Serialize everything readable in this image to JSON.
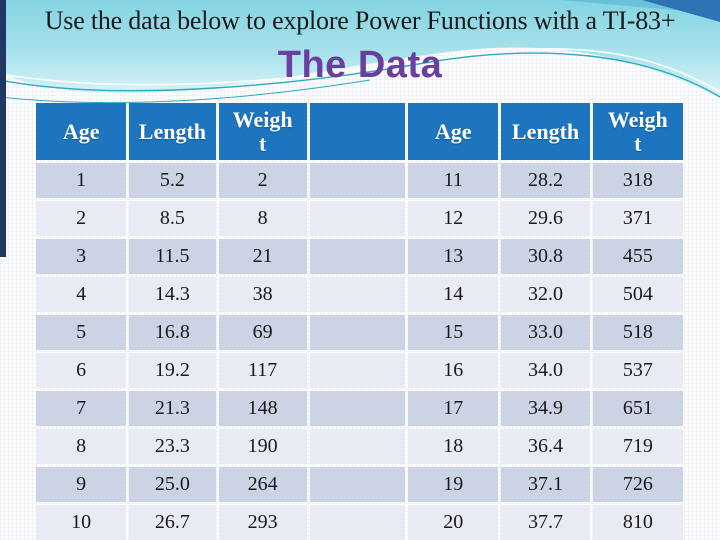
{
  "slide": {
    "title": "Use the data below to explore Power Functions with a TI-83+",
    "subtitle": "The Data"
  },
  "colors": {
    "banner_gradient_top": "#84D4E2",
    "banner_gradient_bottom": "#DCF4F7",
    "banner_line_teal": "#2FA9BE",
    "left_bar_navy": "#1F3864",
    "corner_wedge_blue": "#2E74B5",
    "title_black": "#1A1A1A",
    "subtitle_purple": "#6A3FA0",
    "header_bg_blue": "#1C75BE",
    "header_text": "#FFFFFF",
    "row_dark": "#CCD3E4",
    "row_light": "#E8EBF4",
    "cell_text": "#1A1A1A"
  },
  "table": {
    "column_headers": [
      "Age",
      "Length",
      "Weight"
    ],
    "left_rows": [
      [
        "1",
        "5.2",
        "2"
      ],
      [
        "2",
        "8.5",
        "8"
      ],
      [
        "3",
        "11.5",
        "21"
      ],
      [
        "4",
        "14.3",
        "38"
      ],
      [
        "5",
        "16.8",
        "69"
      ],
      [
        "6",
        "19.2",
        "117"
      ],
      [
        "7",
        "21.3",
        "148"
      ],
      [
        "8",
        "23.3",
        "190"
      ],
      [
        "9",
        "25.0",
        "264"
      ],
      [
        "10",
        "26.7",
        "293"
      ]
    ],
    "right_rows": [
      [
        "11",
        "28.2",
        "318"
      ],
      [
        "12",
        "29.6",
        "371"
      ],
      [
        "13",
        "30.8",
        "455"
      ],
      [
        "14",
        "32.0",
        "504"
      ],
      [
        "15",
        "33.0",
        "518"
      ],
      [
        "16",
        "34.0",
        "537"
      ],
      [
        "17",
        "34.9",
        "651"
      ],
      [
        "18",
        "36.4",
        "719"
      ],
      [
        "19",
        "37.1",
        "726"
      ],
      [
        "20",
        "37.7",
        "810"
      ]
    ]
  }
}
